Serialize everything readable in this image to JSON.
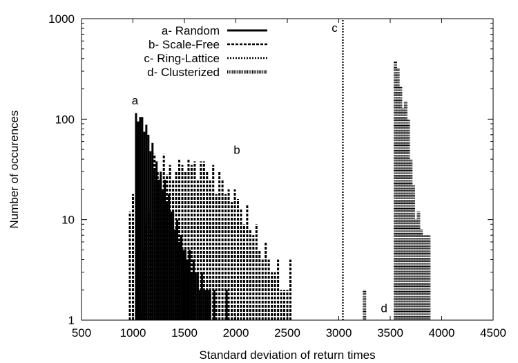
{
  "chart_data": {
    "type": "bar",
    "title": "",
    "xlabel": "Standard deviation of return times",
    "ylabel": "Number of occurences",
    "xlim": [
      500,
      4500
    ],
    "ylim": [
      1,
      1000
    ],
    "y_scale": "log",
    "grid": false,
    "legend_position": "top-left",
    "x_ticks": [
      "500",
      "1000",
      "1500",
      "2000",
      "2500",
      "3000",
      "3500",
      "4000",
      "4500"
    ],
    "x_tick_values": [
      500,
      1000,
      1500,
      2000,
      2500,
      3000,
      3500,
      4000,
      4500
    ],
    "y_ticks": [
      "1",
      "10",
      "100",
      "1000"
    ],
    "y_tick_values": [
      1,
      10,
      100,
      1000
    ],
    "annotations": [
      {
        "text": "a",
        "x": 1020,
        "y": 140
      },
      {
        "text": "b",
        "x": 2010,
        "y": 45
      },
      {
        "text": "c",
        "x": 2960,
        "y": 740
      },
      {
        "text": "d",
        "x": 3440,
        "y": 1.2
      }
    ],
    "series": [
      {
        "name": "a- Random",
        "style": "solid",
        "color": "#000000",
        "x": [
          1030,
          1050,
          1070,
          1090,
          1110,
          1130,
          1150,
          1170,
          1190,
          1210,
          1230,
          1250,
          1270,
          1290,
          1310,
          1330,
          1350,
          1370,
          1390,
          1410,
          1430,
          1450,
          1470,
          1490,
          1510,
          1530,
          1550,
          1570,
          1590,
          1610,
          1630,
          1650,
          1670,
          1690,
          1710,
          1730,
          1750,
          1770,
          1790,
          1810,
          1830,
          1850,
          1870,
          1890,
          1910,
          1930
        ],
        "values": [
          115,
          95,
          105,
          105,
          75,
          88,
          70,
          48,
          58,
          32,
          38,
          25,
          30,
          20,
          25,
          15,
          18,
          12,
          12,
          8,
          10,
          6,
          7,
          5,
          5,
          4,
          5,
          3,
          4,
          3,
          3,
          2,
          3,
          2,
          2,
          2,
          2,
          1,
          2,
          1,
          1,
          1,
          1,
          1,
          2,
          1
        ]
      },
      {
        "name": "b- Scale-Free",
        "style": "dashed",
        "color": "#000000",
        "x": [
          970,
          1000,
          1030,
          1060,
          1090,
          1120,
          1150,
          1180,
          1210,
          1240,
          1270,
          1300,
          1330,
          1360,
          1390,
          1420,
          1450,
          1480,
          1510,
          1540,
          1570,
          1600,
          1630,
          1660,
          1690,
          1720,
          1750,
          1780,
          1810,
          1840,
          1870,
          1900,
          1930,
          1960,
          1990,
          2020,
          2050,
          2080,
          2110,
          2140,
          2170,
          2200,
          2230,
          2260,
          2290,
          2320,
          2350,
          2380,
          2410,
          2440,
          2470,
          2500,
          2530
        ],
        "values": [
          12,
          18,
          6,
          15,
          5,
          9,
          12,
          8,
          45,
          30,
          25,
          45,
          28,
          35,
          25,
          30,
          40,
          35,
          30,
          40,
          35,
          38,
          25,
          38,
          38,
          30,
          25,
          35,
          18,
          30,
          25,
          18,
          20,
          15,
          20,
          16,
          13,
          9,
          14,
          8,
          7,
          9,
          5,
          4,
          6,
          4,
          3,
          3,
          4,
          2,
          2,
          2,
          4
        ]
      },
      {
        "name": "c- Ring-Lattice",
        "style": "dotted",
        "color": "#000000",
        "x": [
          3040
        ],
        "values": [
          1000
        ]
      },
      {
        "name": "d- Clusterized",
        "style": "hatched",
        "color": "#000000",
        "x": [
          3250,
          3550,
          3575,
          3600,
          3625,
          3650,
          3675,
          3700,
          3725,
          3750,
          3775,
          3800,
          3825,
          3850,
          3875
        ],
        "values": [
          2,
          380,
          320,
          210,
          130,
          150,
          100,
          40,
          22,
          10,
          12,
          8,
          7,
          7,
          7
        ]
      }
    ]
  }
}
